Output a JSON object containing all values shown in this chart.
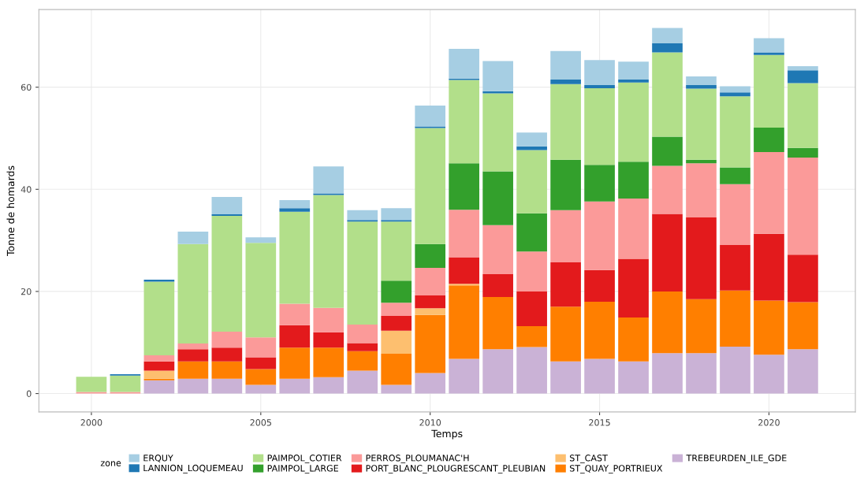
{
  "chart_data": {
    "type": "bar",
    "stacked": true,
    "xlabel": "Temps",
    "ylabel": "Tonne de homards",
    "legend_title": "zone",
    "x": [
      2000,
      2001,
      2002,
      2003,
      2004,
      2005,
      2006,
      2007,
      2008,
      2009,
      2010,
      2011,
      2012,
      2013,
      2014,
      2015,
      2016,
      2017,
      2018,
      2019,
      2020,
      2021
    ],
    "xlim": [
      1998.45,
      2022.55
    ],
    "xticks": [
      2000,
      2005,
      2010,
      2015,
      2020
    ],
    "ylim": [
      -3.6,
      75.2
    ],
    "yticks": [
      0,
      20,
      40,
      60
    ],
    "grid": true,
    "legend": "bottom",
    "series": [
      {
        "name": "TREBEURDEN_ILE_GDE",
        "color": "#cab2d6",
        "values": [
          0,
          0,
          2.6,
          2.9,
          2.9,
          1.7,
          2.9,
          3.2,
          4.5,
          1.7,
          4.0,
          6.8,
          8.7,
          9.1,
          6.3,
          6.8,
          6.3,
          7.9,
          7.9,
          9.2,
          7.6,
          8.7
        ]
      },
      {
        "name": "ST_QUAY_PORTRIEUX",
        "color": "#ff7f00",
        "values": [
          0,
          0,
          0.3,
          3.4,
          3.4,
          3.1,
          6.1,
          5.8,
          3.8,
          6.1,
          11.4,
          14.4,
          10.2,
          4.1,
          10.7,
          11.2,
          8.6,
          12.1,
          10.6,
          11.0,
          10.6,
          9.2
        ]
      },
      {
        "name": "ST_CAST",
        "color": "#fdbf6f",
        "values": [
          0,
          0,
          1.6,
          0,
          0,
          0,
          0,
          0,
          0,
          4.5,
          1.3,
          0.3,
          0,
          0,
          0,
          0,
          0,
          0,
          0,
          0,
          0,
          0
        ]
      },
      {
        "name": "PORT_BLANC_PLOUGRESCANT_PLEUBIAN",
        "color": "#e31a1c",
        "values": [
          0,
          0,
          1.8,
          2.4,
          2.7,
          2.3,
          4.4,
          3.0,
          1.6,
          2.9,
          2.5,
          5.2,
          4.5,
          6.8,
          8.7,
          6.2,
          11.5,
          15.2,
          16.0,
          8.9,
          13.1,
          9.3
        ]
      },
      {
        "name": "PERROS_PLOUMANAC'H",
        "color": "#fb9a99",
        "values": [
          0.3,
          0.3,
          1.2,
          1.1,
          3.1,
          3.9,
          4.2,
          4.8,
          3.6,
          2.6,
          5.4,
          9.3,
          9.6,
          7.8,
          10.2,
          13.4,
          11.8,
          9.4,
          10.6,
          11.9,
          16.0,
          19.0
        ]
      },
      {
        "name": "PAIMPOL_LARGE",
        "color": "#33a02c",
        "values": [
          0,
          0,
          0,
          0,
          0,
          0,
          0,
          0,
          0,
          4.3,
          4.7,
          9.1,
          10.5,
          7.5,
          9.9,
          7.2,
          7.2,
          5.7,
          0.7,
          3.3,
          4.8,
          1.9
        ]
      },
      {
        "name": "PAIMPOL_COTIER",
        "color": "#b2df8a",
        "values": [
          3.0,
          3.2,
          14.4,
          19.5,
          22.7,
          18.5,
          18.0,
          22.1,
          20.2,
          11.6,
          22.7,
          16.3,
          15.3,
          12.4,
          14.8,
          15.0,
          15.5,
          16.5,
          13.9,
          13.9,
          14.2,
          12.7
        ]
      },
      {
        "name": "LANNION_LOQUEMEAU",
        "color": "#1f78b4",
        "values": [
          0,
          0.3,
          0.4,
          0,
          0.3,
          0,
          0.7,
          0.3,
          0.3,
          0.3,
          0.3,
          0.3,
          0.4,
          0.7,
          0.9,
          0.6,
          0.6,
          1.8,
          0.7,
          0.8,
          0.5,
          2.5
        ]
      },
      {
        "name": "ERQUY",
        "color": "#a6cee3",
        "values": [
          0,
          0,
          0,
          2.4,
          3.4,
          1.1,
          1.6,
          5.3,
          1.9,
          2.3,
          4.1,
          5.8,
          5.9,
          2.7,
          5.6,
          4.9,
          3.5,
          3.0,
          1.7,
          1.2,
          2.8,
          0.8
        ]
      }
    ]
  }
}
